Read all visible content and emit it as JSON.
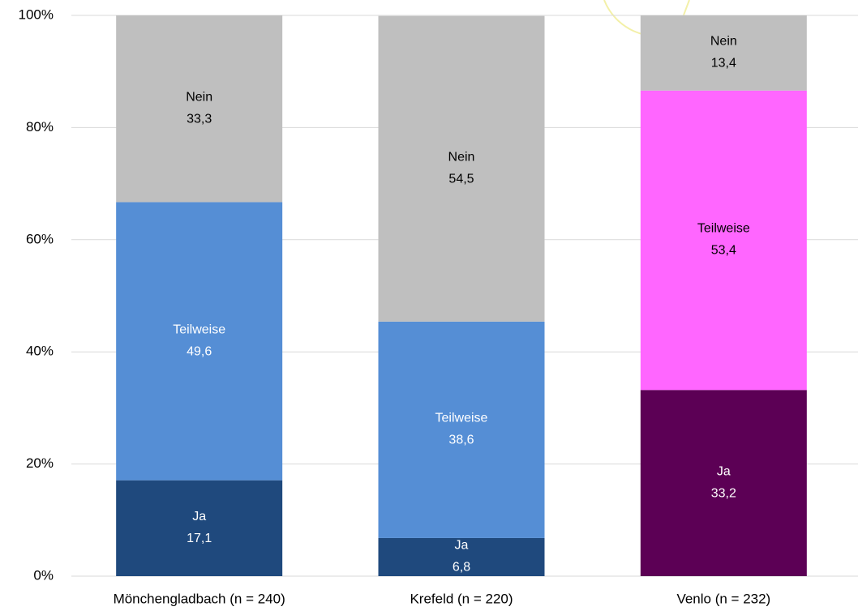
{
  "chart_data": {
    "type": "stacked-bar",
    "categories": [
      "Mönchengladbach (n = 240)",
      "Krefeld (n = 220)",
      "Venlo (n  = 232)"
    ],
    "series": [
      {
        "name": "Ja",
        "colors": [
          "#1f497d",
          "#1f497d",
          "#5c0055"
        ],
        "values": [
          17.1,
          6.8,
          33.2
        ],
        "value_labels": [
          "17,1",
          "6,8",
          "33,2"
        ]
      },
      {
        "name": "Teilweise",
        "colors": [
          "#558ed5",
          "#558ed5",
          "#ff66ff"
        ],
        "values": [
          49.6,
          38.6,
          53.4
        ],
        "value_labels": [
          "49,6",
          "38,6",
          "53,4"
        ]
      },
      {
        "name": "Nein",
        "colors": [
          "#bfbfbf",
          "#bfbfbf",
          "#bfbfbf"
        ],
        "values": [
          33.3,
          54.5,
          13.4
        ],
        "value_labels": [
          "33,3",
          "54,5",
          "13,4"
        ]
      }
    ],
    "ylim": [
      0,
      100
    ],
    "yticks": [
      {
        "value": 0,
        "label": "0%"
      },
      {
        "value": 20,
        "label": "20%"
      },
      {
        "value": 40,
        "label": "40%"
      },
      {
        "value": 60,
        "label": "60%"
      },
      {
        "value": 80,
        "label": "80%"
      },
      {
        "value": 100,
        "label": "100%"
      }
    ],
    "grid": true
  }
}
